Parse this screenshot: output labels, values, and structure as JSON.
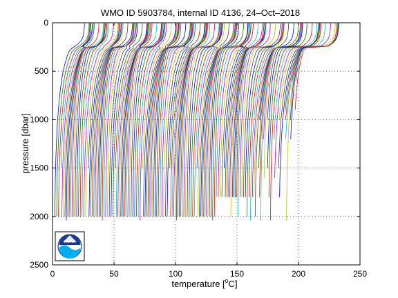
{
  "chart_data": {
    "type": "line",
    "title": "WMO ID 5903784, internal ID 4136, 24–Oct–2018",
    "xlabel": "temperature [°C]",
    "xlabel_prefix": "temperature [",
    "xlabel_degree": "o",
    "xlabel_suffix": "C]",
    "ylabel": "pressure [dbar]",
    "xlim": [
      0,
      250
    ],
    "ylim": [
      0,
      2500
    ],
    "y_reversed": true,
    "grid": true,
    "xticks": [
      0,
      50,
      100,
      150,
      200,
      250
    ],
    "yticks": [
      0,
      500,
      1000,
      1500,
      2000,
      2500
    ],
    "xtick_labels": [
      "0",
      "50",
      "100",
      "150",
      "200",
      "250"
    ],
    "ytick_labels": [
      "0",
      "500",
      "1000",
      "1500",
      "2000",
      "2500"
    ],
    "series_description": "waterfall of ~150 temperature profiles, each offset by about 1.3 along the temperature axis",
    "profile_count": 150,
    "profile_offset_step": 1.3,
    "profile_template": {
      "pressure": [
        5,
        30,
        60,
        90,
        120,
        150,
        180,
        210,
        240,
        260,
        280,
        300,
        350,
        400,
        450,
        500,
        600,
        700,
        800,
        900,
        1000,
        1200,
        1400,
        1500,
        1600,
        1800,
        2000
      ],
      "temperature": [
        26,
        25.9,
        25.8,
        25.5,
        25.2,
        24.6,
        23.5,
        21.5,
        18.5,
        16.2,
        14.5,
        13.2,
        11.8,
        10.6,
        9.6,
        8.6,
        7.3,
        6.3,
        5.4,
        4.8,
        4.1,
        3.3,
        2.7,
        2.5,
        2.3,
        2.1,
        1.9
      ]
    },
    "line_colors": [
      "#0000ff",
      "#008000",
      "#ff0000",
      "#00bfbf",
      "#bf00bf",
      "#bfbf00",
      "#404040"
    ],
    "logo": {
      "text": "NOAA",
      "colors": {
        "dark": "#1a3a8a",
        "light": "#00aeef"
      }
    }
  }
}
